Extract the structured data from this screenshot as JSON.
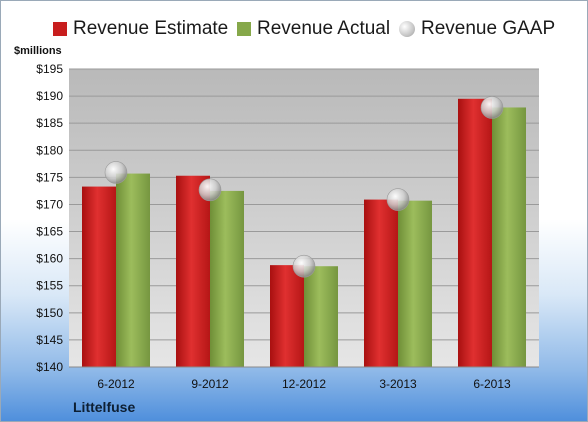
{
  "chart_data": {
    "type": "bar",
    "categories": [
      "6-2012",
      "9-2012",
      "12-2012",
      "3-2013",
      "6-2013"
    ],
    "series": [
      {
        "name": "Revenue Estimate",
        "values": [
          173.3,
          175.3,
          158.8,
          170.9,
          189.5
        ],
        "color": "#c81e1e"
      },
      {
        "name": "Revenue Actual",
        "values": [
          175.7,
          172.5,
          158.6,
          170.7,
          187.9
        ],
        "color": "#86a84a"
      },
      {
        "name": "Revenue GAAP",
        "values": [
          175.9,
          172.7,
          158.6,
          170.9,
          187.9
        ],
        "marker": "circle",
        "color": "#c7c7c7"
      }
    ],
    "ylabel": "$millions",
    "ylim": [
      140,
      195
    ],
    "yticks": [
      "$140",
      "$145",
      "$150",
      "$155",
      "$160",
      "$165",
      "$170",
      "$175",
      "$180",
      "$185",
      "$190",
      "$195"
    ],
    "grid": true,
    "legend_position": "top"
  },
  "footer": {
    "company": "Littelfuse"
  }
}
